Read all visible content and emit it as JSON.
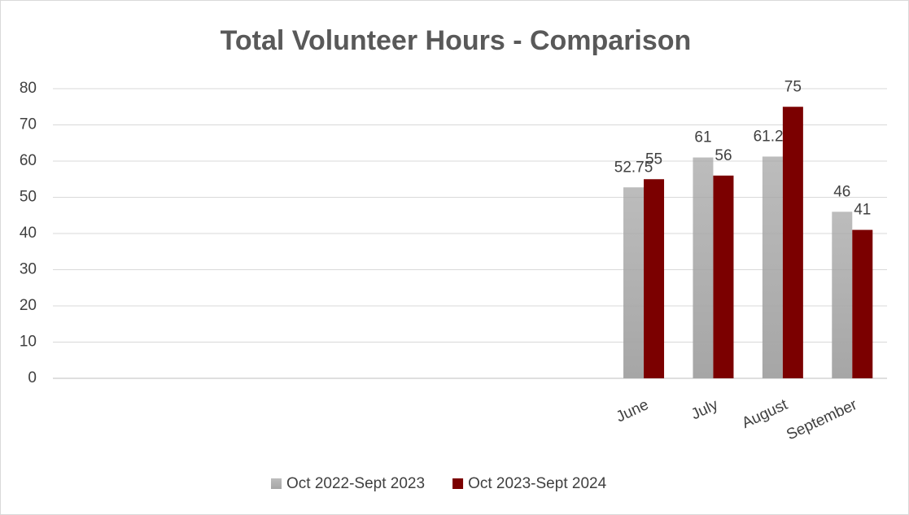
{
  "chart_data": {
    "type": "bar",
    "title": "Total Volunteer Hours - Comparison",
    "categories": [
      null,
      null,
      null,
      null,
      null,
      null,
      null,
      null,
      "June",
      "July",
      "August",
      "September"
    ],
    "series": [
      {
        "name": "Oct 2022-Sept 2023",
        "color": "#a6a6a6",
        "values": [
          null,
          null,
          null,
          null,
          null,
          null,
          null,
          null,
          52.75,
          61,
          61.25,
          46
        ]
      },
      {
        "name": "Oct 2023-Sept 2024",
        "color": "#7b0000",
        "values": [
          null,
          null,
          null,
          null,
          null,
          null,
          null,
          null,
          55,
          56,
          75,
          41
        ]
      }
    ],
    "ylim": [
      0,
      80
    ],
    "yticks": [
      0,
      10,
      20,
      30,
      40,
      50,
      60,
      70,
      80
    ],
    "grid": true,
    "legend": "bottom"
  }
}
